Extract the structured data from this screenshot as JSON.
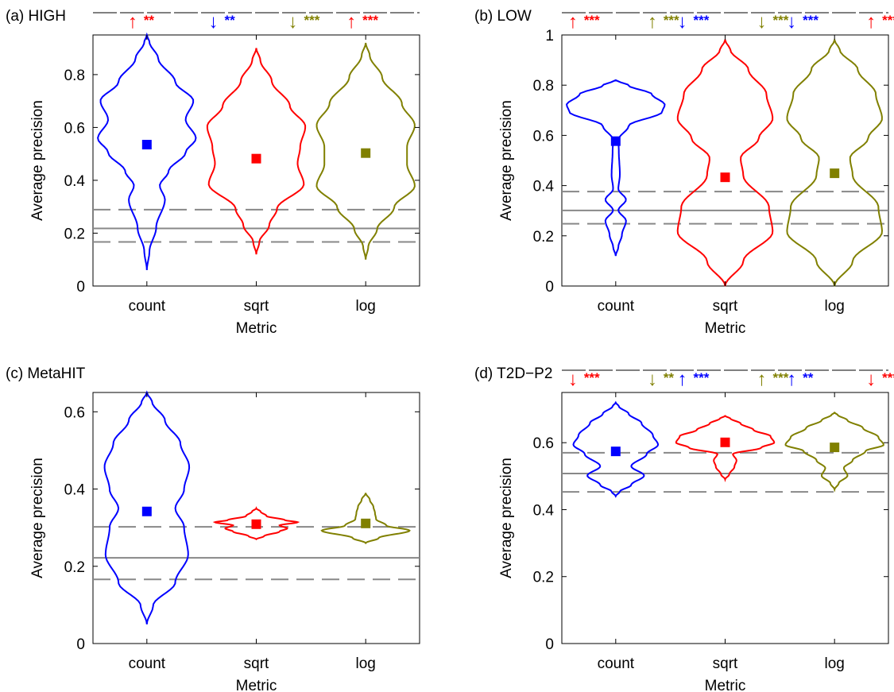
{
  "colors": {
    "count": "#0000ff",
    "sqrt": "#ff0000",
    "log": "#808000",
    "reference": "#888888"
  },
  "chart_data": [
    {
      "type": "violin",
      "panel_label": "(a) HIGH",
      "xlabel": "Metric",
      "ylabel": "Average precision",
      "categories": [
        "count",
        "sqrt",
        "log"
      ],
      "ylim": [
        0,
        0.95
      ],
      "yticks": [
        "0",
        "0.2",
        "0.4",
        "0.6",
        "0.8"
      ],
      "ytick_values": [
        0,
        0.2,
        0.4,
        0.6,
        0.8
      ],
      "means": [
        0.535,
        0.482,
        0.503
      ],
      "violin_ranges": [
        [
          0.06,
          0.95
        ],
        [
          0.12,
          0.9
        ],
        [
          0.1,
          0.92
        ]
      ],
      "reference_lines": {
        "solid": 0.218,
        "dashed": [
          0.167,
          0.289
        ]
      },
      "significance": [
        [
          {
            "dir": "↑",
            "stars": "**",
            "color": "sqrt"
          }
        ],
        [
          {
            "dir": "↓",
            "stars": "**",
            "color": "count"
          },
          {
            "dir": "↓",
            "stars": "***",
            "color": "log"
          }
        ],
        [
          {
            "dir": "↑",
            "stars": "***",
            "color": "sqrt"
          }
        ]
      ]
    },
    {
      "type": "violin",
      "panel_label": "(b) LOW",
      "xlabel": "Metric",
      "ylabel": "Average precision",
      "categories": [
        "count",
        "sqrt",
        "log"
      ],
      "ylim": [
        0,
        1
      ],
      "yticks": [
        "0",
        "0.2",
        "0.4",
        "0.6",
        "0.8",
        "1"
      ],
      "ytick_values": [
        0,
        0.2,
        0.4,
        0.6,
        0.8,
        1
      ],
      "means": [
        0.577,
        0.433,
        0.449
      ],
      "violin_ranges": [
        [
          0.12,
          0.82
        ],
        [
          0.0,
          0.98
        ],
        [
          0.0,
          0.98
        ]
      ],
      "reference_lines": {
        "solid": 0.301,
        "dashed": [
          0.248,
          0.376
        ]
      },
      "significance": [
        [
          {
            "dir": "↑",
            "stars": "***",
            "color": "sqrt"
          },
          {
            "dir": "↑",
            "stars": "***",
            "color": "log"
          }
        ],
        [
          {
            "dir": "↓",
            "stars": "***",
            "color": "count"
          },
          {
            "dir": "↓",
            "stars": "***",
            "color": "log"
          }
        ],
        [
          {
            "dir": "↓",
            "stars": "***",
            "color": "count"
          },
          {
            "dir": "↑",
            "stars": "***",
            "color": "sqrt"
          }
        ]
      ]
    },
    {
      "type": "violin",
      "panel_label": "(c) MetaHIT",
      "xlabel": "Metric",
      "ylabel": "Average precision",
      "categories": [
        "count",
        "sqrt",
        "log"
      ],
      "ylim": [
        0,
        0.65
      ],
      "yticks": [
        "0",
        "0.2",
        "0.4",
        "0.6"
      ],
      "ytick_values": [
        0,
        0.2,
        0.4,
        0.6
      ],
      "means": [
        0.342,
        0.309,
        0.311
      ],
      "violin_ranges": [
        [
          0.05,
          0.65
        ],
        [
          0.27,
          0.35
        ],
        [
          0.26,
          0.39
        ]
      ],
      "reference_lines": {
        "solid": 0.222,
        "dashed": [
          0.166,
          0.302
        ]
      },
      "significance": [
        [],
        [],
        []
      ]
    },
    {
      "type": "violin",
      "panel_label": "(d) T2D−P2",
      "xlabel": "Metric",
      "ylabel": "Average precision",
      "categories": [
        "count",
        "sqrt",
        "log"
      ],
      "ylim": [
        0,
        0.75
      ],
      "yticks": [
        "0",
        "0.2",
        "0.4",
        "0.6"
      ],
      "ytick_values": [
        0,
        0.2,
        0.4,
        0.6
      ],
      "means": [
        0.574,
        0.601,
        0.586
      ],
      "violin_ranges": [
        [
          0.44,
          0.72
        ],
        [
          0.49,
          0.68
        ],
        [
          0.46,
          0.69
        ]
      ],
      "reference_lines": {
        "solid": 0.508,
        "dashed": [
          0.453,
          0.57
        ]
      },
      "significance": [
        [
          {
            "dir": "↓",
            "stars": "***",
            "color": "sqrt"
          },
          {
            "dir": "↓",
            "stars": "**",
            "color": "log"
          }
        ],
        [
          {
            "dir": "↑",
            "stars": "***",
            "color": "count"
          },
          {
            "dir": "↑",
            "stars": "***",
            "color": "log"
          }
        ],
        [
          {
            "dir": "↑",
            "stars": "**",
            "color": "count"
          },
          {
            "dir": "↓",
            "stars": "***",
            "color": "sqrt"
          }
        ]
      ]
    }
  ]
}
